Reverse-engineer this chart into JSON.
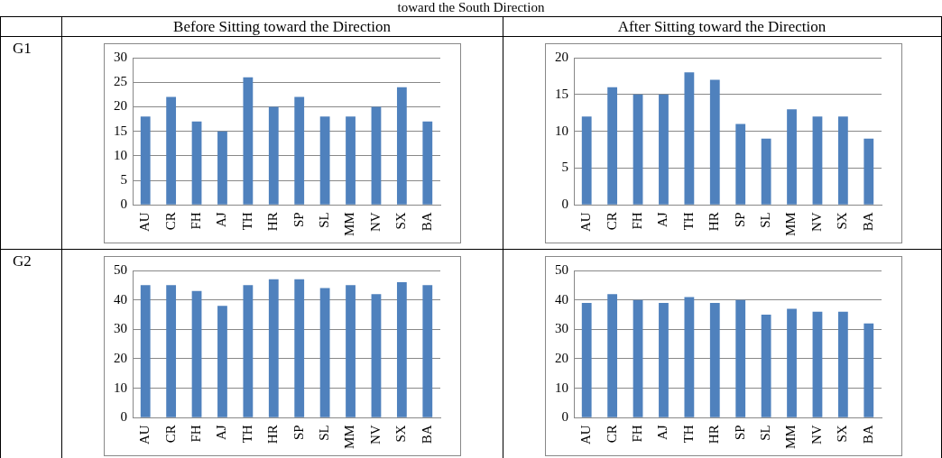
{
  "chart_data": [
    {
      "type": "other",
      "title": "toward the South Direction",
      "annotations": [
        "Before Sitting toward the Direction",
        "After Sitting toward the Direction",
        "G1",
        "G2"
      ]
    },
    {
      "type": "bar",
      "categories": [
        "AU",
        "CR",
        "FH",
        "AJ",
        "TH",
        "HR",
        "SP",
        "SL",
        "MM",
        "NV",
        "SX",
        "BA"
      ],
      "values": [
        18,
        22,
        17,
        15,
        26,
        20,
        22,
        18,
        18,
        20,
        24,
        17
      ],
      "color": "#4f81bd",
      "ylim": [
        0,
        30
      ],
      "yticks": [
        0,
        5,
        10,
        15,
        20,
        25,
        30
      ],
      "grid": "y"
    },
    {
      "type": "bar",
      "categories": [
        "AU",
        "CR",
        "FH",
        "AJ",
        "TH",
        "HR",
        "SP",
        "SL",
        "MM",
        "NV",
        "SX",
        "BA"
      ],
      "values": [
        12,
        16,
        15,
        15,
        18,
        17,
        11,
        9,
        13,
        12,
        12,
        9
      ],
      "color": "#4f81bd",
      "ylim": [
        0,
        20
      ],
      "yticks": [
        0,
        5,
        10,
        15,
        20
      ],
      "grid": "y"
    },
    {
      "type": "bar",
      "categories": [
        "AU",
        "CR",
        "FH",
        "AJ",
        "TH",
        "HR",
        "SP",
        "SL",
        "MM",
        "NV",
        "SX",
        "BA"
      ],
      "values": [
        45,
        45,
        43,
        38,
        45,
        47,
        47,
        44,
        45,
        42,
        46,
        45
      ],
      "color": "#4f81bd",
      "ylim": [
        0,
        50
      ],
      "yticks": [
        0,
        10,
        20,
        30,
        40,
        50
      ],
      "grid": "y"
    },
    {
      "type": "bar",
      "categories": [
        "AU",
        "CR",
        "FH",
        "AJ",
        "TH",
        "HR",
        "SP",
        "SL",
        "MM",
        "NV",
        "SX",
        "BA"
      ],
      "values": [
        39,
        42,
        40,
        39,
        41,
        39,
        40,
        35,
        37,
        36,
        36,
        32
      ],
      "color": "#4f81bd",
      "ylim": [
        0,
        50
      ],
      "yticks": [
        0,
        10,
        20,
        30,
        40,
        50
      ],
      "grid": "y"
    }
  ]
}
